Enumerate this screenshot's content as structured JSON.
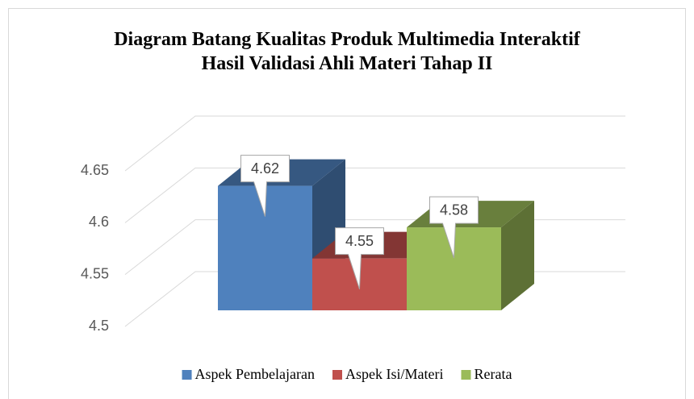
{
  "chart_data": {
    "type": "bar3d",
    "title": "Diagram Batang Kualitas Produk Multimedia Interaktif Hasil Validasi Ahli Materi Tahap II",
    "categories": [
      null
    ],
    "series": [
      {
        "name": "Aspek Pembelajaran",
        "color": "#4f81bd",
        "values": [
          4.62
        ]
      },
      {
        "name": "Aspek Isi/Materi",
        "color": "#c0504d",
        "values": [
          4.55
        ]
      },
      {
        "name": "Rerata",
        "color": "#9bbb59",
        "values": [
          4.58
        ]
      }
    ],
    "ylim": [
      4.5,
      4.65
    ],
    "yticks": [
      4.5,
      4.55,
      4.6,
      4.65
    ],
    "grid": true,
    "legend": "bottom"
  }
}
